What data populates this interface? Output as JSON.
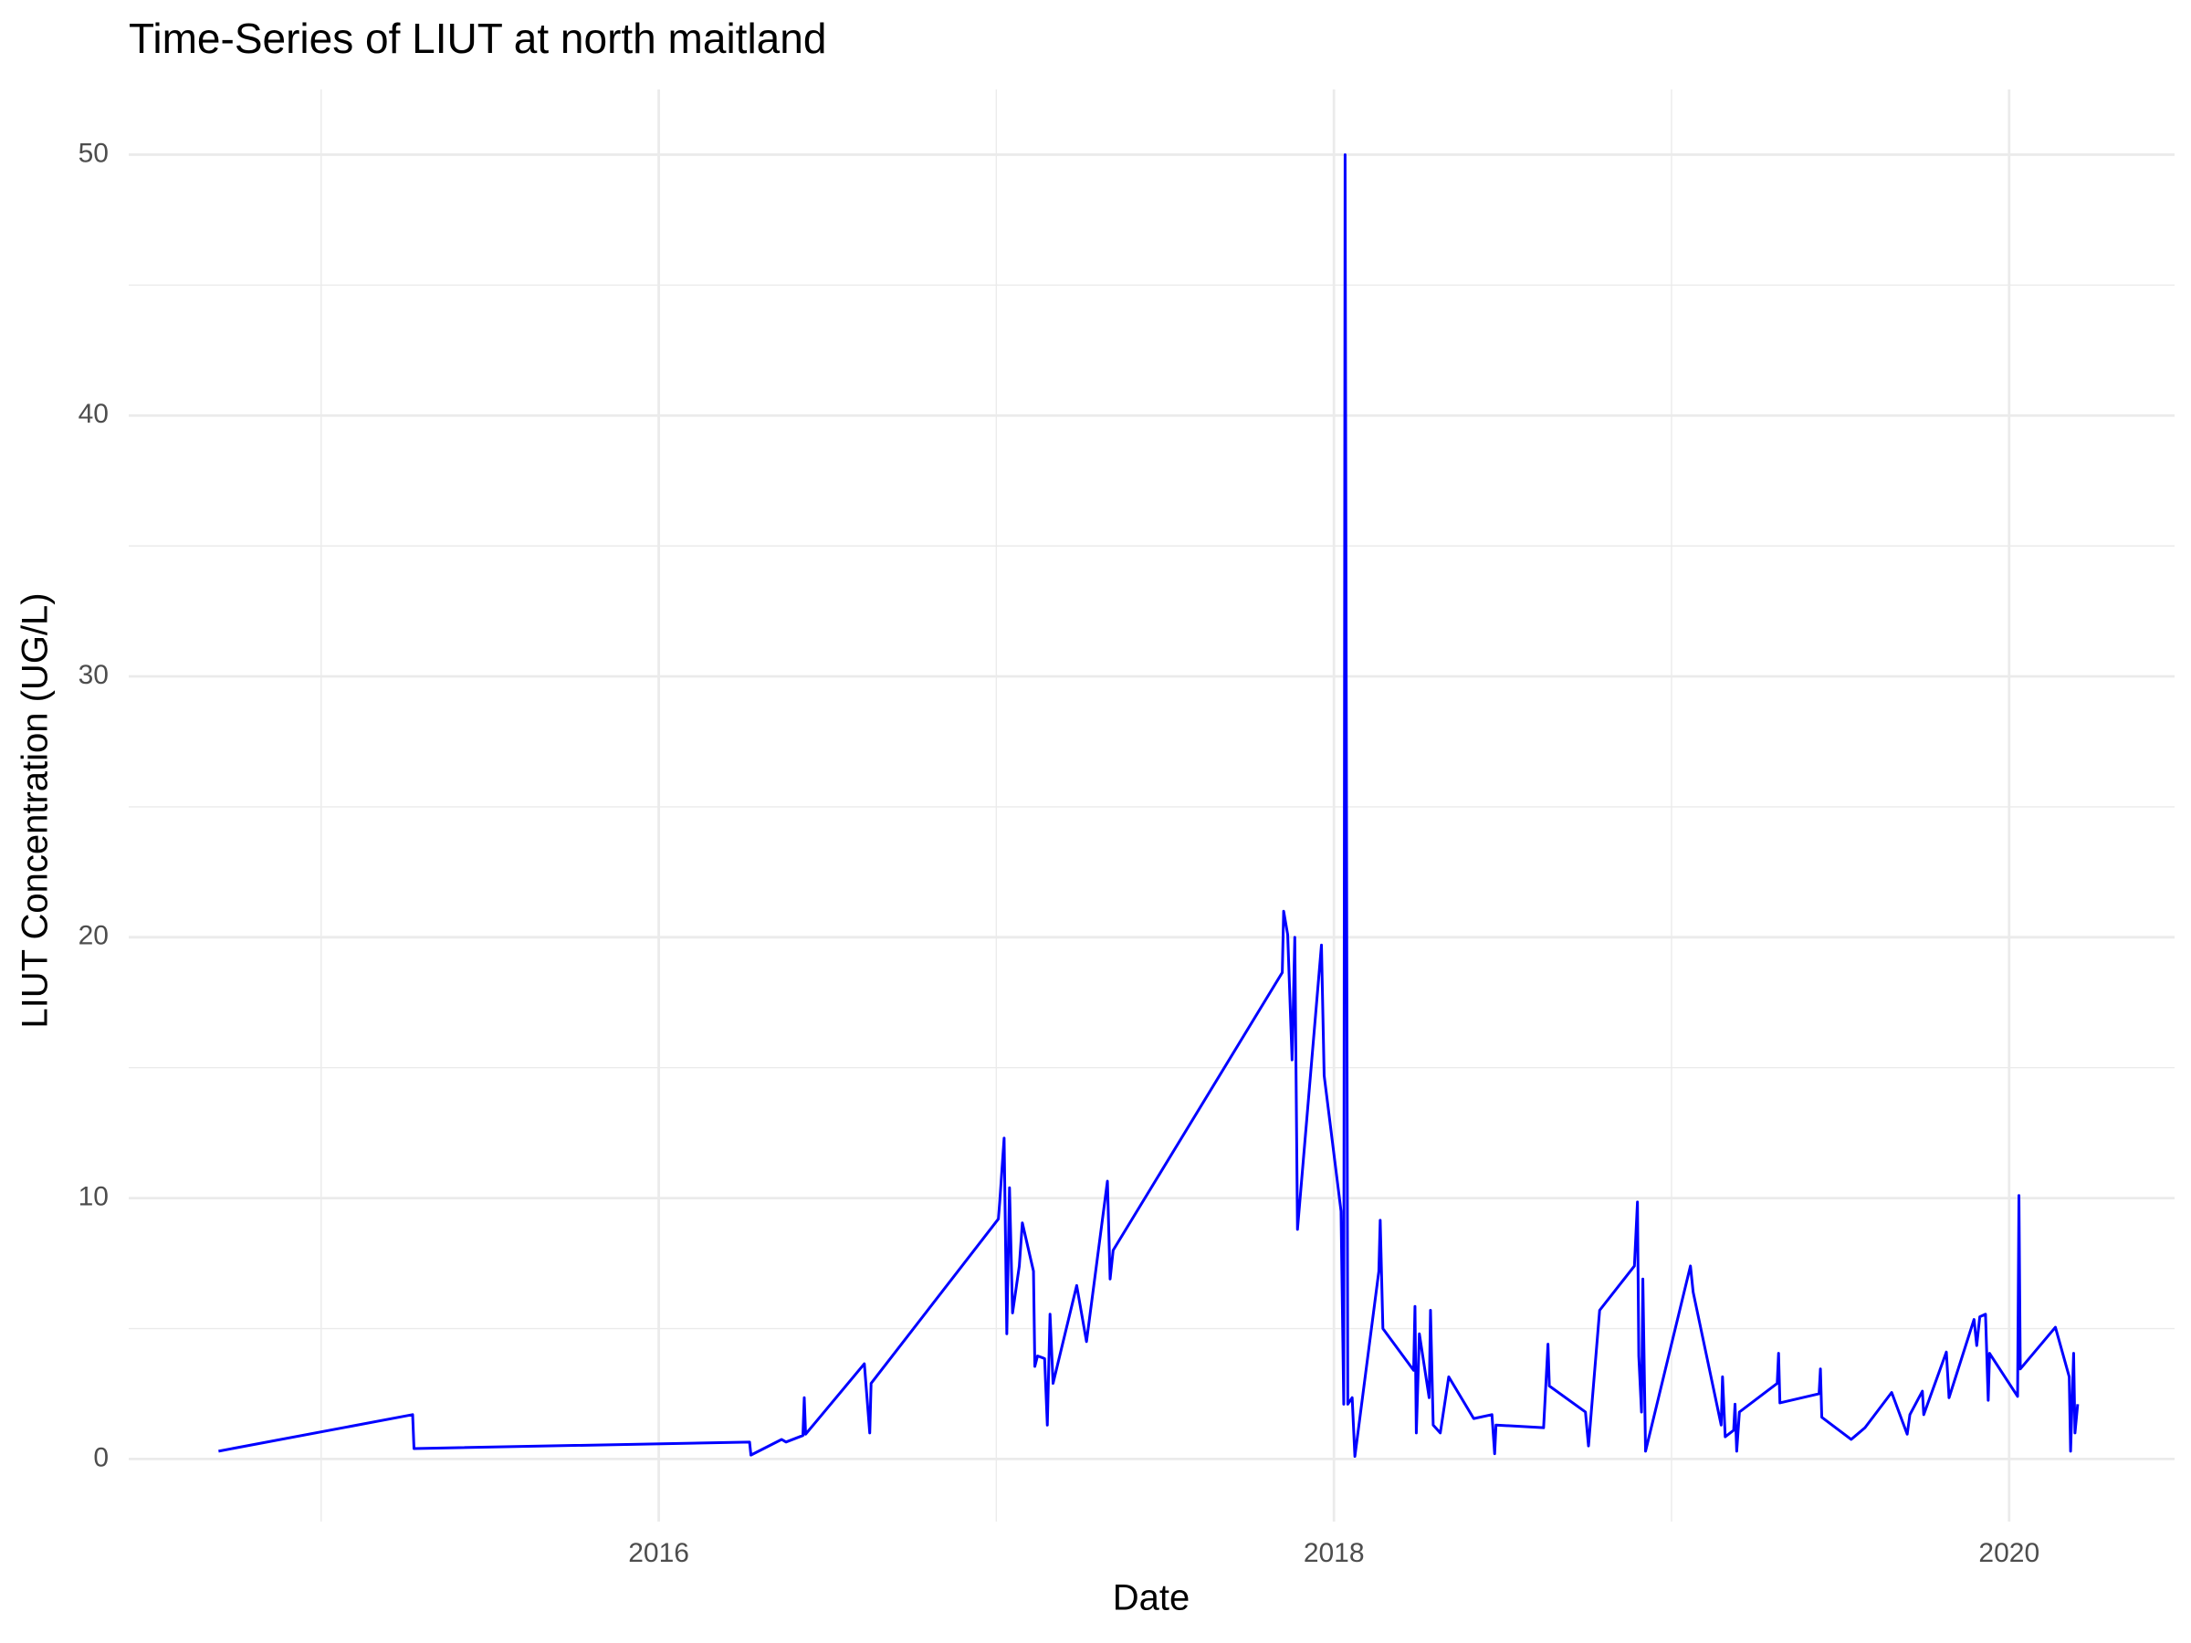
{
  "chart_data": {
    "type": "line",
    "title": "Time-Series of LIUT at north maitland",
    "x_label": "Date",
    "y_label": "LIUT Concentration (UG/L)",
    "color": "#0000ff",
    "grid": true,
    "xlim": [
      2014.43,
      2020.49
    ],
    "xticks": [
      2016,
      2018,
      2020
    ],
    "minor_xticks": [
      2015,
      2017,
      2019
    ],
    "ylim": [
      -2.4,
      52.5
    ],
    "yticks": [
      0,
      10,
      20,
      30,
      40,
      50
    ],
    "minor_yticks": [
      5,
      15,
      25,
      35,
      45
    ],
    "x": [
      2014.696,
      2015.271,
      2015.275,
      2016.269,
      2016.273,
      2016.364,
      2016.377,
      2016.427,
      2016.431,
      2016.435,
      2016.609,
      2016.625,
      2016.629,
      2017.006,
      2017.01,
      2017.023,
      2017.031,
      2017.039,
      2017.048,
      2017.068,
      2017.077,
      2017.11,
      2017.114,
      2017.122,
      2017.143,
      2017.151,
      2017.159,
      2017.168,
      2017.238,
      2017.267,
      2017.329,
      2017.337,
      2017.346,
      2017.847,
      2017.851,
      2017.863,
      2017.876,
      2017.884,
      2017.892,
      2017.963,
      2017.971,
      2018.021,
      2018.029,
      2018.033,
      2018.041,
      2018.054,
      2018.062,
      2018.133,
      2018.137,
      2018.145,
      2018.236,
      2018.24,
      2018.244,
      2018.253,
      2018.282,
      2018.286,
      2018.294,
      2018.315,
      2018.34,
      2018.414,
      2018.468,
      2018.476,
      2018.48,
      2018.621,
      2018.634,
      2018.638,
      2018.745,
      2018.754,
      2018.787,
      2018.89,
      2018.899,
      2018.903,
      2018.911,
      2018.915,
      2018.923,
      2019.056,
      2019.064,
      2019.147,
      2019.151,
      2019.159,
      2019.184,
      2019.188,
      2019.193,
      2019.201,
      2019.313,
      2019.317,
      2019.321,
      2019.437,
      2019.441,
      2019.445,
      2019.532,
      2019.573,
      2019.652,
      2019.685,
      2019.698,
      2019.706,
      2019.743,
      2019.747,
      2019.814,
      2019.822,
      2019.896,
      2019.904,
      2019.913,
      2019.93,
      2019.938,
      2019.942,
      2020.025,
      2020.029,
      2020.033,
      2020.137,
      2020.178,
      2020.182,
      2020.191,
      2020.195,
      2020.203
    ],
    "values": [
      0.3,
      1.7,
      0.4,
      0.65,
      0.15,
      0.75,
      0.65,
      0.9,
      2.35,
      0.95,
      3.65,
      1.0,
      2.9,
      9.2,
      9.85,
      12.3,
      4.8,
      10.4,
      5.6,
      7.4,
      9.05,
      7.2,
      3.55,
      3.95,
      3.85,
      1.3,
      5.55,
      2.9,
      6.65,
      4.5,
      10.65,
      6.9,
      8.0,
      18.65,
      21.0,
      20.1,
      15.3,
      20.0,
      8.8,
      19.7,
      14.7,
      9.5,
      2.1,
      50,
      2.1,
      2.35,
      0.1,
      7.2,
      9.15,
      5.0,
      3.4,
      5.85,
      1.0,
      4.8,
      2.35,
      5.7,
      1.3,
      1.0,
      3.15,
      1.55,
      1.7,
      0.2,
      1.3,
      1.2,
      4.4,
      2.8,
      1.8,
      0.5,
      5.7,
      7.4,
      9.85,
      3.95,
      1.8,
      6.9,
      0.3,
      7.4,
      6.4,
      1.3,
      3.15,
      0.85,
      1.1,
      2.1,
      0.3,
      1.8,
      2.9,
      4.05,
      2.15,
      2.5,
      3.45,
      1.6,
      0.75,
      1.2,
      2.55,
      1.4,
      0.95,
      1.7,
      2.6,
      1.7,
      4.1,
      2.35,
      5.35,
      4.35,
      5.45,
      5.55,
      2.25,
      4.05,
      2.4,
      10.1,
      3.45,
      5.05,
      3.15,
      0.3,
      4.05,
      1.0,
      2.1
    ]
  }
}
